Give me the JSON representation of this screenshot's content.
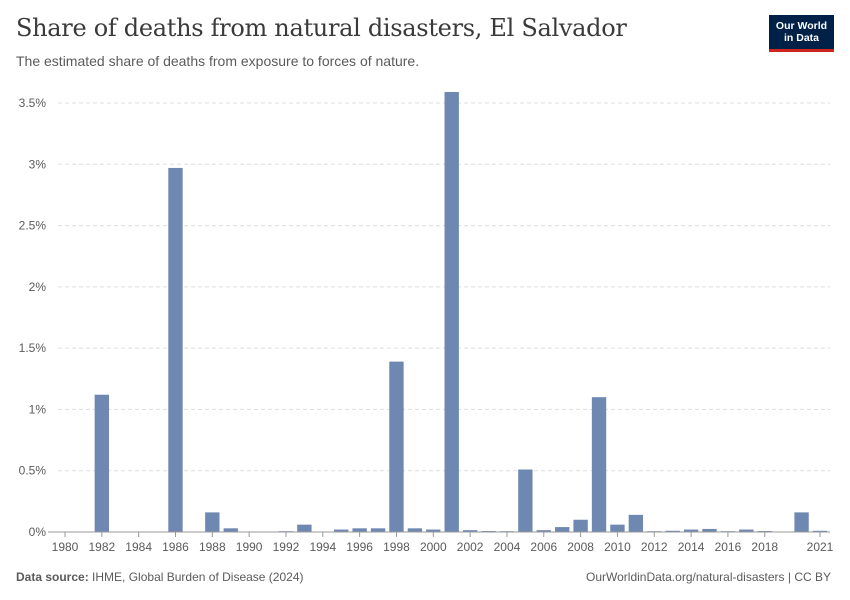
{
  "header": {
    "title": "Share of deaths from natural disasters, El Salvador",
    "subtitle": "The estimated share of deaths from exposure to forces of nature."
  },
  "logo": {
    "line1": "Our World",
    "line2": "in Data"
  },
  "footer": {
    "source_label": "Data source:",
    "source_text": "IHME, Global Burden of Disease (2024)",
    "url_text": "OurWorldinData.org/natural-disasters | CC BY"
  },
  "colors": {
    "bar": "#6f88b2",
    "grid": "#dddddd",
    "axis": "#999999",
    "text": "#5b5b5b"
  },
  "chart_data": {
    "type": "bar",
    "title": "Share of deaths from natural disasters, El Salvador",
    "xlabel": "",
    "ylabel": "",
    "unit": "%",
    "ylim": [
      0,
      3.6
    ],
    "yticks": [
      {
        "value": 0,
        "label": "0%"
      },
      {
        "value": 0.5,
        "label": "0.5%"
      },
      {
        "value": 1,
        "label": "1%"
      },
      {
        "value": 1.5,
        "label": "1.5%"
      },
      {
        "value": 2,
        "label": "2%"
      },
      {
        "value": 2.5,
        "label": "2.5%"
      },
      {
        "value": 3,
        "label": "3%"
      },
      {
        "value": 3.5,
        "label": "3.5%"
      }
    ],
    "xticks": [
      "1980",
      "1982",
      "1984",
      "1986",
      "1988",
      "1990",
      "1992",
      "1994",
      "1996",
      "1998",
      "2000",
      "2002",
      "2004",
      "2006",
      "2008",
      "2010",
      "2012",
      "2014",
      "2016",
      "2018",
      "2021"
    ],
    "categories": [
      1980,
      1981,
      1982,
      1983,
      1984,
      1985,
      1986,
      1987,
      1988,
      1989,
      1990,
      1991,
      1992,
      1993,
      1994,
      1995,
      1996,
      1997,
      1998,
      1999,
      2000,
      2001,
      2002,
      2003,
      2004,
      2005,
      2006,
      2007,
      2008,
      2009,
      2010,
      2011,
      2012,
      2013,
      2014,
      2015,
      2016,
      2017,
      2018,
      2019,
      2020,
      2021
    ],
    "values": [
      0,
      0,
      1.12,
      0,
      0,
      0,
      2.97,
      0,
      0.16,
      0.03,
      0,
      0,
      0.005,
      0.06,
      0,
      0.02,
      0.03,
      0.03,
      1.39,
      0.03,
      0.02,
      3.59,
      0.015,
      0.008,
      0.005,
      0.51,
      0.015,
      0.04,
      0.1,
      1.1,
      0.06,
      0.14,
      0.002,
      0.01,
      0.02,
      0.025,
      0.002,
      0.02,
      0.008,
      0,
      0.16,
      0.01
    ]
  }
}
